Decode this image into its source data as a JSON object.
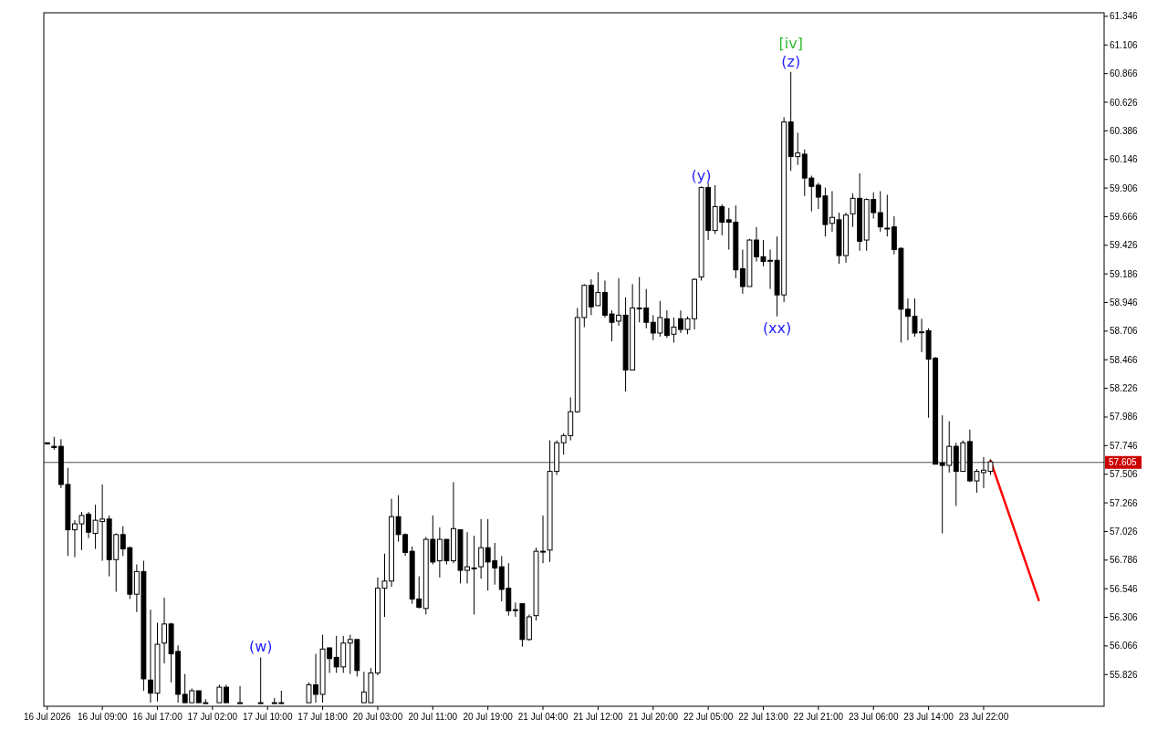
{
  "chart_data": {
    "type": "candlestick",
    "categories": [
      "16 Jul 2026",
      null,
      null,
      null,
      null,
      null,
      null,
      null,
      "16 Jul 09:00",
      null,
      null,
      null,
      null,
      null,
      null,
      null,
      "16 Jul 17:00",
      null,
      null,
      null,
      null,
      null,
      null,
      null,
      "17 Jul 02:00",
      null,
      null,
      null,
      null,
      null,
      null,
      null,
      "17 Jul 10:00",
      null,
      null,
      null,
      null,
      null,
      null,
      null,
      "17 Jul 18:00",
      null,
      null,
      null,
      null,
      null,
      null,
      null,
      "20 Jul 03:00",
      null,
      null,
      null,
      null,
      null,
      null,
      null,
      "20 Jul 11:00",
      null,
      null,
      null,
      null,
      null,
      null,
      null,
      "20 Jul 19:00",
      null,
      null,
      null,
      null,
      null,
      null,
      null,
      "21 Jul 04:00",
      null,
      null,
      null,
      null,
      null,
      null,
      null,
      "21 Jul 12:00",
      null,
      null,
      null,
      null,
      null,
      null,
      null,
      "21 Jul 20:00",
      null,
      null,
      null,
      null,
      null,
      null,
      null,
      "22 Jul 05:00",
      null,
      null,
      null,
      null,
      null,
      null,
      null,
      "22 Jul 13:00",
      null,
      null,
      null,
      null,
      null,
      null,
      null,
      "22 Jul 21:00",
      null,
      null,
      null,
      null,
      null,
      null,
      null,
      "23 Jul 06:00",
      null,
      null,
      null,
      null,
      null,
      null,
      null,
      "23 Jul 14:00",
      null,
      null,
      null,
      null,
      null,
      null,
      null,
      "23 Jul 22:00",
      null,
      null,
      null,
      null,
      null,
      null,
      null,
      null,
      null,
      null,
      null,
      null,
      null,
      null,
      null,
      null,
      null
    ],
    "ohlc": [
      [
        57.77,
        57.77,
        57.76,
        57.76
      ],
      [
        57.74,
        57.82,
        57.71,
        57.73
      ],
      [
        57.74,
        57.8,
        57.39,
        57.42
      ],
      [
        57.42,
        57.56,
        56.82,
        57.04
      ],
      [
        57.04,
        57.12,
        56.81,
        57.09
      ],
      [
        57.09,
        57.19,
        56.87,
        57.16
      ],
      [
        57.17,
        57.19,
        56.97,
        57.02
      ],
      [
        57.01,
        57.25,
        56.88,
        57.12
      ],
      [
        57.11,
        57.42,
        56.78,
        57.13
      ],
      [
        57.13,
        57.16,
        56.65,
        56.79
      ],
      [
        56.79,
        57.01,
        56.52,
        57.0
      ],
      [
        57.0,
        57.07,
        56.82,
        56.88
      ],
      [
        56.89,
        56.9,
        56.46,
        56.5
      ],
      [
        56.5,
        56.75,
        56.35,
        56.69
      ],
      [
        56.69,
        56.78,
        55.69,
        55.79
      ],
      [
        55.78,
        56.37,
        55.59,
        55.67
      ],
      [
        55.67,
        56.26,
        55.6,
        56.08
      ],
      [
        56.09,
        56.47,
        55.92,
        56.25
      ],
      [
        56.25,
        56.26,
        55.76,
        56.0
      ],
      [
        56.02,
        56.07,
        55.59,
        55.66
      ],
      [
        55.66,
        55.83,
        55.59,
        55.59
      ],
      [
        55.59,
        55.71,
        55.59,
        55.69
      ],
      [
        55.69,
        55.69,
        55.59,
        55.59
      ],
      [
        55.59,
        55.62,
        55.59,
        55.59
      ],
      null,
      [
        55.59,
        55.74,
        55.59,
        55.72
      ],
      [
        55.72,
        55.74,
        55.59,
        55.59
      ],
      null,
      [
        55.59,
        55.73,
        55.59,
        55.59
      ],
      null,
      null,
      [
        55.59,
        55.97,
        55.59,
        55.59
      ],
      null,
      [
        55.59,
        55.63,
        55.59,
        55.59
      ],
      [
        55.59,
        55.69,
        55.59,
        55.59
      ],
      null,
      null,
      null,
      [
        55.59,
        55.76,
        55.59,
        55.74
      ],
      [
        55.74,
        56.0,
        55.59,
        55.66
      ],
      [
        55.66,
        56.16,
        55.59,
        56.04
      ],
      [
        56.05,
        56.05,
        55.84,
        55.96
      ],
      [
        55.97,
        56.15,
        55.84,
        55.89
      ],
      [
        55.89,
        56.15,
        55.84,
        56.09
      ],
      [
        56.09,
        56.16,
        55.83,
        56.12
      ],
      [
        56.12,
        56.12,
        55.81,
        55.86
      ],
      [
        55.59,
        55.85,
        55.59,
        55.68
      ],
      [
        55.59,
        55.88,
        55.59,
        55.84
      ],
      [
        55.84,
        56.64,
        55.82,
        56.55
      ],
      [
        56.55,
        56.84,
        56.31,
        56.61
      ],
      [
        56.61,
        57.3,
        56.56,
        57.15
      ],
      [
        57.15,
        57.33,
        56.94,
        57.0
      ],
      [
        57.0,
        57.01,
        56.82,
        56.85
      ],
      [
        56.86,
        56.9,
        56.42,
        56.46
      ],
      [
        56.46,
        56.65,
        56.38,
        56.39
      ],
      [
        56.38,
        56.98,
        56.33,
        56.96
      ],
      [
        56.96,
        57.16,
        56.75,
        56.77
      ],
      [
        56.78,
        57.06,
        56.64,
        56.96
      ],
      [
        56.96,
        56.96,
        56.75,
        56.78
      ],
      [
        56.78,
        57.44,
        56.76,
        57.05
      ],
      [
        57.04,
        57.04,
        56.59,
        56.7
      ],
      [
        56.7,
        57.02,
        56.59,
        56.73
      ],
      [
        56.72,
        56.99,
        56.33,
        56.72
      ],
      [
        56.73,
        57.13,
        56.63,
        56.89
      ],
      [
        56.89,
        57.13,
        56.53,
        56.77
      ],
      [
        56.78,
        56.93,
        56.58,
        56.72
      ],
      [
        56.73,
        56.82,
        56.44,
        56.54
      ],
      [
        56.55,
        56.76,
        56.32,
        56.36
      ],
      [
        56.37,
        56.43,
        56.31,
        56.37
      ],
      [
        56.42,
        56.42,
        56.06,
        56.12
      ],
      [
        56.12,
        56.33,
        56.11,
        56.31
      ],
      [
        56.32,
        56.89,
        56.28,
        56.86
      ],
      [
        56.86,
        57.16,
        56.76,
        56.86
      ],
      [
        56.87,
        57.79,
        56.77,
        57.53
      ],
      [
        57.53,
        57.79,
        57.5,
        57.77
      ],
      [
        57.77,
        57.85,
        57.67,
        57.83
      ],
      [
        57.83,
        58.15,
        57.79,
        58.03
      ],
      [
        58.03,
        58.9,
        58.02,
        58.82
      ],
      [
        58.82,
        59.1,
        58.74,
        59.09
      ],
      [
        59.09,
        59.14,
        58.84,
        58.91
      ],
      [
        58.92,
        59.2,
        58.92,
        59.03
      ],
      [
        59.03,
        59.13,
        58.82,
        58.84
      ],
      [
        58.85,
        58.88,
        58.62,
        58.78
      ],
      [
        58.79,
        59.15,
        58.75,
        58.84
      ],
      [
        58.84,
        58.99,
        58.2,
        58.38
      ],
      [
        58.38,
        59.1,
        58.38,
        58.9
      ],
      [
        58.9,
        59.16,
        58.78,
        58.9
      ],
      [
        58.9,
        59.06,
        58.73,
        58.78
      ],
      [
        58.78,
        58.84,
        58.63,
        58.69
      ],
      [
        58.69,
        58.96,
        58.66,
        58.82
      ],
      [
        58.81,
        58.88,
        58.65,
        58.67
      ],
      [
        58.68,
        58.82,
        58.61,
        58.74
      ],
      [
        58.81,
        58.88,
        58.69,
        58.72
      ],
      [
        58.72,
        58.83,
        58.68,
        58.81
      ],
      [
        58.81,
        59.15,
        58.72,
        59.14
      ],
      [
        59.16,
        59.92,
        59.13,
        59.91
      ],
      [
        59.91,
        59.95,
        59.47,
        59.55
      ],
      [
        59.55,
        59.93,
        59.52,
        59.75
      ],
      [
        59.75,
        59.77,
        59.51,
        59.62
      ],
      [
        59.64,
        59.74,
        59.39,
        59.62
      ],
      [
        59.62,
        59.76,
        59.15,
        59.22
      ],
      [
        59.23,
        59.39,
        59.02,
        59.08
      ],
      [
        59.08,
        59.48,
        59.08,
        59.47
      ],
      [
        59.47,
        59.58,
        59.29,
        59.33
      ],
      [
        59.33,
        59.47,
        59.25,
        59.29
      ],
      [
        59.3,
        59.39,
        59.06,
        59.3
      ],
      [
        59.3,
        59.5,
        58.83,
        59.01
      ],
      [
        59.01,
        60.5,
        58.95,
        60.46
      ],
      [
        60.46,
        60.88,
        60.05,
        60.17
      ],
      [
        60.17,
        60.37,
        60.1,
        60.2
      ],
      [
        60.19,
        60.23,
        59.84,
        59.99
      ],
      [
        59.99,
        60.01,
        59.71,
        59.92
      ],
      [
        59.93,
        59.95,
        59.73,
        59.83
      ],
      [
        59.84,
        59.91,
        59.5,
        59.6
      ],
      [
        59.61,
        59.88,
        59.54,
        59.66
      ],
      [
        59.64,
        59.7,
        59.27,
        59.34
      ],
      [
        59.34,
        59.7,
        59.28,
        59.68
      ],
      [
        59.69,
        59.86,
        59.58,
        59.82
      ],
      [
        59.82,
        60.03,
        59.38,
        59.46
      ],
      [
        59.47,
        59.82,
        59.38,
        59.81
      ],
      [
        59.81,
        59.87,
        59.65,
        59.7
      ],
      [
        59.7,
        59.88,
        59.54,
        59.58
      ],
      [
        59.57,
        59.85,
        59.5,
        59.57
      ],
      [
        59.58,
        59.67,
        59.35,
        59.39
      ],
      [
        59.4,
        59.41,
        58.61,
        58.89
      ],
      [
        58.89,
        58.98,
        58.63,
        58.83
      ],
      [
        58.83,
        58.98,
        58.66,
        58.69
      ],
      [
        58.7,
        58.81,
        58.53,
        58.7
      ],
      [
        58.71,
        58.73,
        57.98,
        58.47
      ],
      [
        58.48,
        58.49,
        57.59,
        57.59
      ],
      [
        57.6,
        58.0,
        57.01,
        57.58
      ],
      [
        57.58,
        57.95,
        57.52,
        57.74
      ],
      [
        57.74,
        57.77,
        57.24,
        57.53
      ],
      [
        57.53,
        57.79,
        57.53,
        57.77
      ],
      [
        57.78,
        57.88,
        57.44,
        57.45
      ],
      [
        57.45,
        57.55,
        57.35,
        57.53
      ],
      [
        57.52,
        57.65,
        57.39,
        57.54
      ],
      [
        57.53,
        57.63,
        57.5,
        57.61
      ],
      null,
      null,
      null,
      null,
      null,
      null,
      null,
      null,
      null,
      null,
      null,
      null,
      null,
      null,
      null,
      null
    ],
    "series": [
      {
        "type": "line",
        "color": "#ff0000",
        "values": [
          null,
          null,
          null,
          null,
          null,
          null,
          null,
          null,
          null,
          null,
          null,
          null,
          null,
          null,
          null,
          null,
          null,
          null,
          null,
          null,
          null,
          null,
          null,
          null,
          null,
          null,
          null,
          null,
          null,
          null,
          null,
          null,
          null,
          null,
          null,
          null,
          null,
          null,
          null,
          null,
          null,
          null,
          null,
          null,
          null,
          null,
          null,
          null,
          null,
          null,
          null,
          null,
          null,
          null,
          null,
          null,
          null,
          null,
          null,
          null,
          null,
          null,
          null,
          null,
          null,
          null,
          null,
          null,
          null,
          null,
          null,
          null,
          null,
          null,
          null,
          null,
          null,
          null,
          null,
          null,
          null,
          null,
          null,
          null,
          null,
          null,
          null,
          null,
          null,
          null,
          null,
          null,
          null,
          null,
          null,
          null,
          null,
          null,
          null,
          null,
          null,
          null,
          null,
          null,
          null,
          null,
          null,
          null,
          null,
          null,
          null,
          null,
          null,
          null,
          null,
          null,
          null,
          null,
          null,
          null,
          null,
          null,
          null,
          null,
          null,
          null,
          null,
          null,
          null,
          null,
          null,
          null,
          null,
          null,
          null,
          null,
          null,
          57.62,
          null,
          null,
          null,
          null,
          null,
          null,
          56.45,
          null,
          null,
          null,
          null,
          null,
          null,
          null,
          null,
          null
        ]
      }
    ],
    "ylim": [
      55.56,
      61.376
    ],
    "yticks": [
      61.346,
      61.106,
      60.866,
      60.626,
      60.386,
      60.146,
      59.906,
      59.666,
      59.426,
      59.186,
      58.946,
      58.706,
      58.466,
      58.226,
      57.986,
      57.746,
      57.506,
      57.266,
      57.026,
      56.786,
      56.546,
      56.306,
      56.066,
      55.826
    ],
    "ref_lines": [
      {
        "axis": "y",
        "value": 57.605,
        "label": "57.605",
        "color": "#000000"
      }
    ],
    "annotations": [
      {
        "text": "(w)",
        "y": 55.97
      },
      {
        "text": "(y)",
        "y": 59.92
      },
      {
        "text": "(z)",
        "y": 60.88
      },
      {
        "text": "[iv]",
        "y": 60.88
      },
      {
        "text": "(xx)",
        "y": 58.83
      }
    ]
  }
}
